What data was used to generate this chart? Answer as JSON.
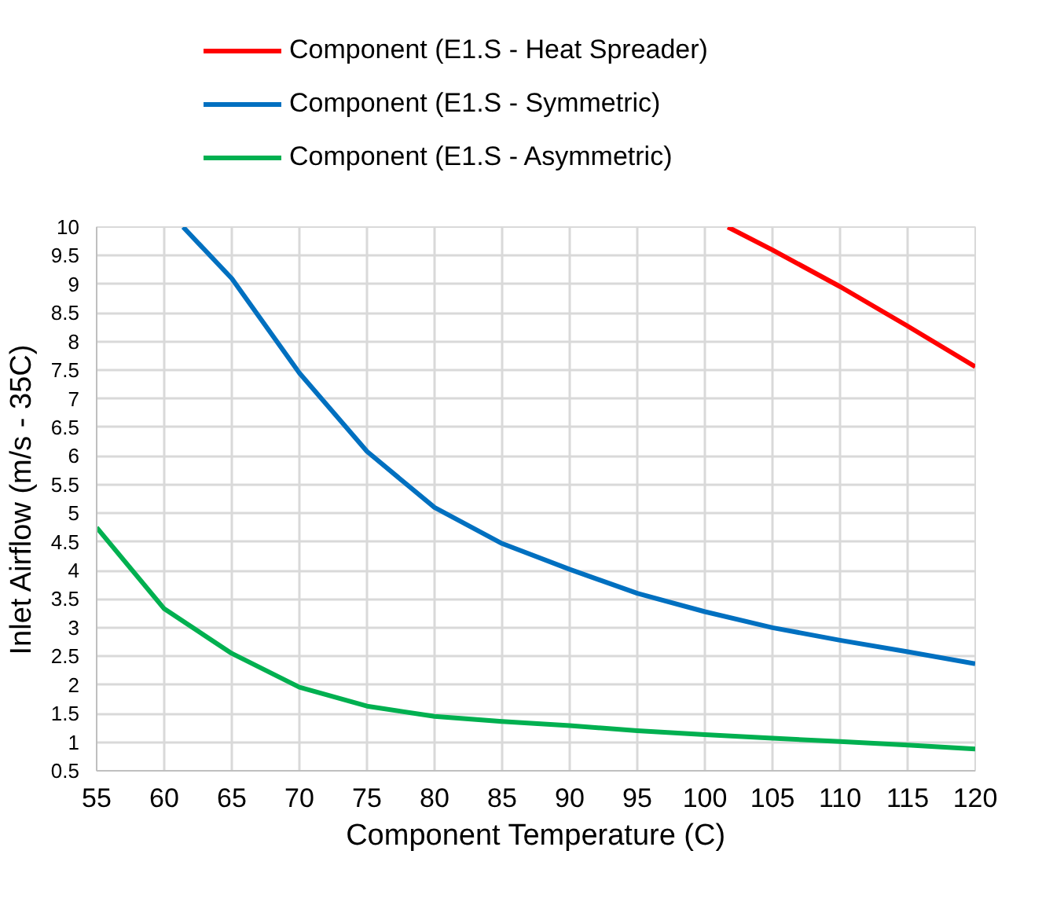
{
  "chart_data": {
    "type": "line",
    "xlabel": "Component Temperature (C)",
    "ylabel": "Inlet Airflow (m/s - 35C)",
    "series": [
      {
        "name": "Component (E1.S - Heat Spreader)",
        "color": "#ff0000",
        "x": [
          101.7,
          105,
          110,
          115,
          120
        ],
        "values": [
          10,
          9.6,
          8.96,
          8.27,
          7.56
        ]
      },
      {
        "name": "Component (E1.S - Symmetric)",
        "color": "#0070c0",
        "x": [
          61.4,
          65,
          70,
          75,
          80,
          85,
          90,
          95,
          100,
          105,
          110,
          115,
          120
        ],
        "values": [
          10,
          9.1,
          7.45,
          6.08,
          5.1,
          4.47,
          4.02,
          3.6,
          3.28,
          3.0,
          2.78,
          2.58,
          2.37
        ]
      },
      {
        "name": "Component (E1.S - Asymmetric)",
        "color": "#00b050",
        "x": [
          55,
          60,
          65,
          70,
          75,
          80,
          85,
          90,
          95,
          100,
          105,
          110,
          115,
          120
        ],
        "values": [
          4.75,
          3.33,
          2.55,
          1.96,
          1.63,
          1.45,
          1.36,
          1.29,
          1.2,
          1.13,
          1.07,
          1.01,
          0.95,
          0.88
        ]
      }
    ],
    "xlim": [
      55,
      120
    ],
    "xticks": [
      55,
      60,
      65,
      70,
      75,
      80,
      85,
      90,
      95,
      100,
      105,
      110,
      115,
      120
    ],
    "ylim": [
      0.5,
      10
    ],
    "yticks": [
      0.5,
      1,
      1.5,
      2,
      2.5,
      3,
      3.5,
      4,
      4.5,
      5,
      5.5,
      6,
      6.5,
      7,
      7.5,
      8,
      8.5,
      9,
      9.5,
      10
    ],
    "grid": true,
    "legend": "top",
    "marker": "none",
    "line_style": "solid"
  }
}
